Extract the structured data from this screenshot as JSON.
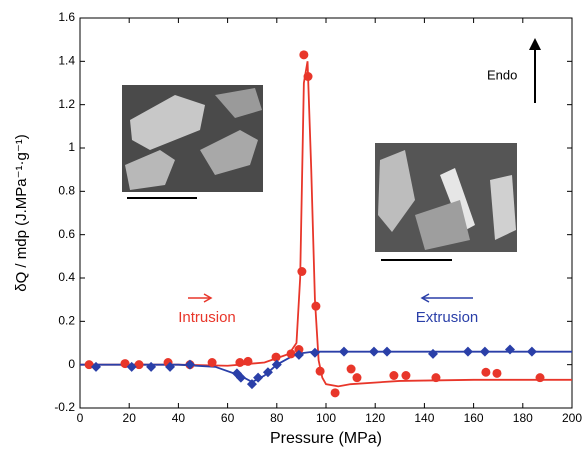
{
  "chart_data": {
    "type": "scatter",
    "xlabel": "Pressure (MPa)",
    "ylabel": "δQ / mdp (J.MPa⁻¹·g⁻¹)",
    "annotations": [
      "Endo",
      "Intrusion",
      "Extrusion"
    ],
    "xlim": [
      0,
      200
    ],
    "xticks": [
      0,
      20,
      40,
      60,
      80,
      100,
      120,
      140,
      160,
      180,
      200
    ],
    "ylim": [
      -0.2,
      1.6
    ],
    "yticks": [
      -0.2,
      0,
      0.2,
      0.4,
      0.6,
      0.8,
      1,
      1.2,
      1.4,
      1.6
    ],
    "series": [
      {
        "name": "Intrusion",
        "color": "#e8362a",
        "marker": "circle",
        "x": [
          3.7,
          18.3,
          24,
          35.8,
          44.7,
          53.7,
          65,
          68.3,
          79.7,
          85.8,
          89,
          90.2,
          91,
          92.7,
          95.9,
          97.6,
          103.7,
          110.2,
          112.6,
          127.6,
          132.5,
          144.7,
          165,
          169.5,
          187
        ],
        "values": [
          0,
          0.005,
          0,
          0.01,
          0,
          0.01,
          0.01,
          0.015,
          0.035,
          0.05,
          0.07,
          0.43,
          1.43,
          1.33,
          0.27,
          -0.03,
          -0.13,
          -0.02,
          -0.06,
          -0.05,
          -0.05,
          -0.06,
          -0.035,
          -0.04,
          -0.06
        ],
        "fit_x": [
          0,
          40,
          60,
          75,
          85,
          88,
          89.5,
          91,
          92.5,
          94,
          95.5,
          97,
          98.5,
          100,
          105,
          110,
          130,
          160,
          200
        ],
        "fit_values": [
          0,
          0,
          -0.005,
          0.01,
          0.05,
          0.1,
          0.4,
          1.3,
          1.4,
          0.9,
          0.3,
          0.02,
          -0.06,
          -0.09,
          -0.1,
          -0.09,
          -0.075,
          -0.07,
          -0.07
        ]
      },
      {
        "name": "Extrusion",
        "color": "#2a3fa8",
        "marker": "diamond",
        "x": [
          6.5,
          21,
          28.9,
          36.6,
          44.7,
          63.8,
          65.4,
          69.9,
          72.4,
          76.4,
          80,
          89,
          95.5,
          107.3,
          119.5,
          124.8,
          143.5,
          157.7,
          164.6,
          174.8,
          183.7
        ],
        "values": [
          -0.01,
          -0.01,
          -0.01,
          -0.01,
          0,
          -0.04,
          -0.06,
          -0.09,
          -0.06,
          -0.035,
          0,
          0.045,
          0.055,
          0.06,
          0.06,
          0.06,
          0.05,
          0.06,
          0.06,
          0.07,
          0.06
        ],
        "fit_x": [
          0,
          40,
          55,
          65,
          70,
          75,
          80,
          88,
          95,
          200
        ],
        "fit_values": [
          0,
          0,
          -0.01,
          -0.05,
          -0.08,
          -0.05,
          0,
          0.05,
          0.06,
          0.06
        ]
      }
    ]
  }
}
